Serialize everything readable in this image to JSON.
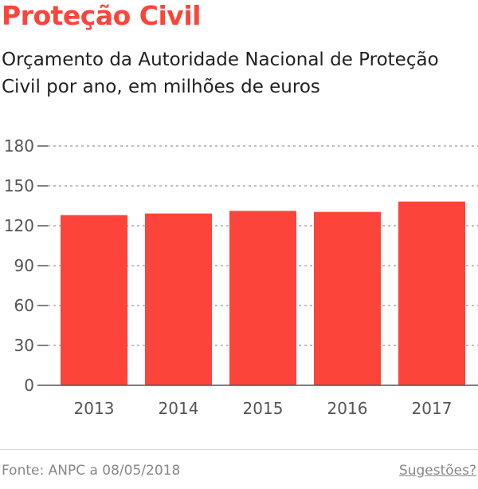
{
  "title": "Proteção Civil",
  "subtitle": "Orçamento da Autoridade Nacional de Proteção Civil por ano, em milhões de euros",
  "footer": {
    "source": "Fonte: ANPC a 08/05/2018",
    "suggestions": "Sugestões?"
  },
  "chart_data": {
    "type": "bar",
    "title": "Proteção Civil",
    "subtitle": "Orçamento da Autoridade Nacional de Proteção Civil por ano, em milhões de euros",
    "categories": [
      "2013",
      "2014",
      "2015",
      "2016",
      "2017"
    ],
    "values": [
      128,
      129.2,
      131.2,
      130.4,
      138.2
    ],
    "ylim": [
      0,
      180
    ],
    "yticks": [
      0,
      30,
      60,
      90,
      120,
      150,
      180
    ],
    "grid": true,
    "color": "#fd443a"
  }
}
